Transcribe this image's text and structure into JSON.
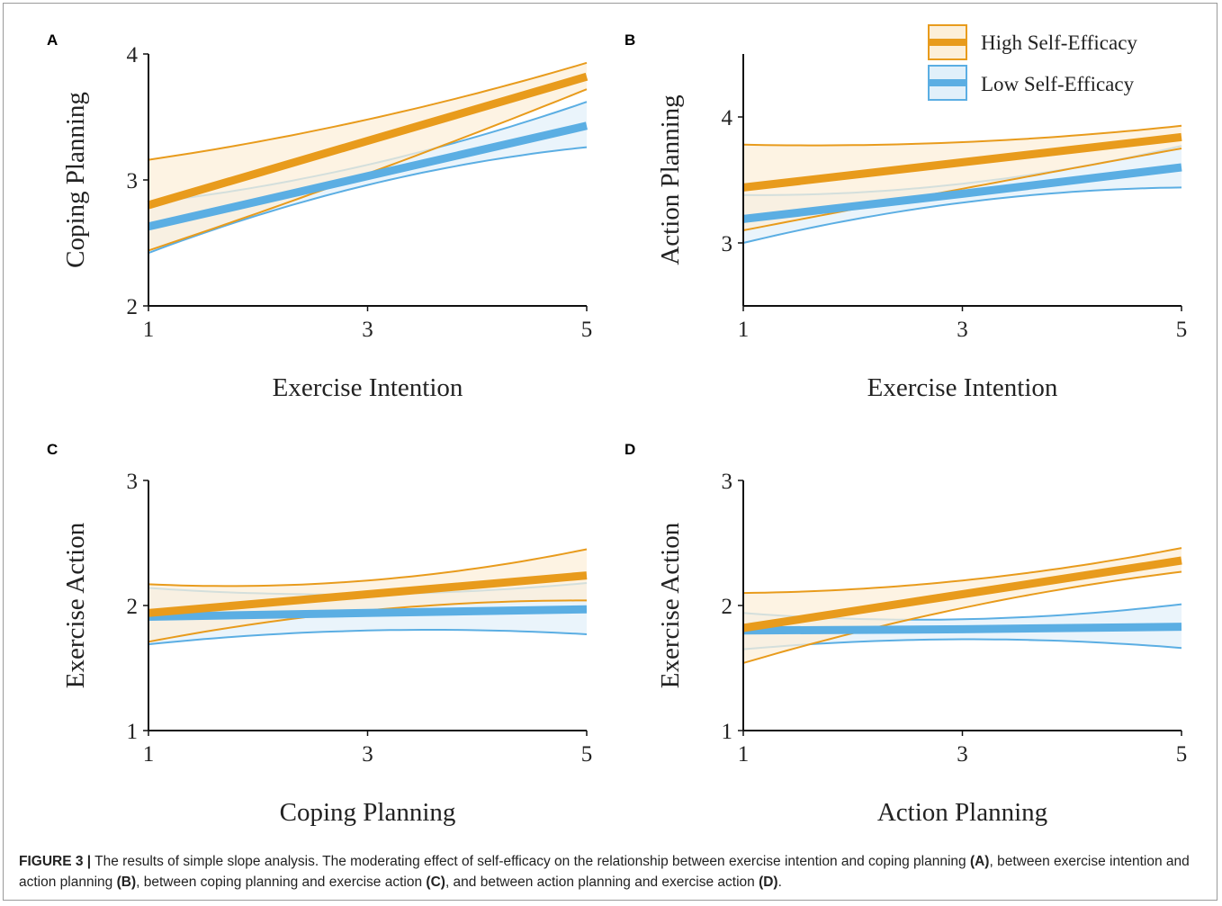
{
  "figure": {
    "caption_label": "FIGURE 3 |",
    "caption_parts": [
      {
        "text": " The results of simple slope analysis. The moderating effect of self-efficacy on the relationship between exercise intention and coping planning ",
        "bold": false
      },
      {
        "text": "(A)",
        "bold": true
      },
      {
        "text": ", between exercise intention and action planning ",
        "bold": false
      },
      {
        "text": "(B)",
        "bold": true
      },
      {
        "text": ", between coping planning and exercise action ",
        "bold": false
      },
      {
        "text": "(C)",
        "bold": true
      },
      {
        "text": ", and between action planning and exercise action ",
        "bold": false
      },
      {
        "text": "(D)",
        "bold": true
      },
      {
        "text": ".",
        "bold": false
      }
    ]
  },
  "legend": {
    "high_label": "High Self-Efficacy",
    "low_label": "Low Self-Efficacy"
  },
  "colors": {
    "high_line": "#E89B1C",
    "high_fill": "#FCEFD9",
    "low_line": "#5BAEE3",
    "low_fill": "#E1F0FA",
    "axis": "#111111"
  },
  "chart_data": [
    {
      "panel": "A",
      "type": "line",
      "xlabel": "Exercise Intention",
      "ylabel": "Coping Planning",
      "xlim": [
        1,
        5
      ],
      "ylim": [
        2,
        4
      ],
      "xticks": [
        1,
        3,
        5
      ],
      "yticks": [
        2,
        3,
        4
      ],
      "series": [
        {
          "name": "High Self-Efficacy",
          "x": [
            1,
            3,
            5
          ],
          "y": [
            2.8,
            3.31,
            3.82
          ],
          "lower": [
            2.44,
            3.05,
            3.72
          ],
          "upper": [
            3.16,
            3.48,
            3.93
          ],
          "color": "#E89B1C"
        },
        {
          "name": "Low Self-Efficacy",
          "x": [
            1,
            3,
            5
          ],
          "y": [
            2.63,
            3.03,
            3.43
          ],
          "lower": [
            2.42,
            2.96,
            3.26
          ],
          "upper": [
            2.82,
            3.12,
            3.62
          ],
          "color": "#5BAEE3"
        }
      ]
    },
    {
      "panel": "B",
      "type": "line",
      "xlabel": "Exercise Intention",
      "ylabel": "Action Planning",
      "xlim": [
        1,
        5
      ],
      "ylim": [
        2.5,
        4.5
      ],
      "xticks": [
        1,
        3,
        5
      ],
      "yticks": [
        3,
        4
      ],
      "series": [
        {
          "name": "High Self-Efficacy",
          "x": [
            1,
            3,
            5
          ],
          "y": [
            3.44,
            3.64,
            3.84
          ],
          "lower": [
            3.1,
            3.43,
            3.75
          ],
          "upper": [
            3.78,
            3.8,
            3.93
          ],
          "color": "#E89B1C"
        },
        {
          "name": "Low Self-Efficacy",
          "x": [
            1,
            3,
            5
          ],
          "y": [
            3.19,
            3.39,
            3.6
          ],
          "lower": [
            3.0,
            3.32,
            3.44
          ],
          "upper": [
            3.38,
            3.47,
            3.77
          ],
          "color": "#5BAEE3"
        }
      ]
    },
    {
      "panel": "C",
      "type": "line",
      "xlabel": "Coping Planning",
      "ylabel": "Exercise Action",
      "xlim": [
        1,
        5
      ],
      "ylim": [
        1,
        3
      ],
      "xticks": [
        1,
        3,
        5
      ],
      "yticks": [
        1,
        2,
        3
      ],
      "series": [
        {
          "name": "High Self-Efficacy",
          "x": [
            1,
            3,
            5
          ],
          "y": [
            1.94,
            2.09,
            2.24
          ],
          "lower": [
            1.71,
            1.96,
            2.04
          ],
          "upper": [
            2.17,
            2.2,
            2.45
          ],
          "color": "#E89B1C"
        },
        {
          "name": "Low Self-Efficacy",
          "x": [
            1,
            3,
            5
          ],
          "y": [
            1.91,
            1.94,
            1.97
          ],
          "lower": [
            1.69,
            1.8,
            1.77
          ],
          "upper": [
            2.14,
            2.09,
            2.18
          ],
          "color": "#5BAEE3"
        }
      ]
    },
    {
      "panel": "D",
      "type": "line",
      "xlabel": "Action Planning",
      "ylabel": "Exercise Action",
      "xlim": [
        1,
        5
      ],
      "ylim": [
        1,
        3
      ],
      "xticks": [
        1,
        3,
        5
      ],
      "yticks": [
        1,
        2,
        3
      ],
      "series": [
        {
          "name": "High Self-Efficacy",
          "x": [
            1,
            3,
            5
          ],
          "y": [
            1.82,
            2.09,
            2.36
          ],
          "lower": [
            1.54,
            1.98,
            2.27
          ],
          "upper": [
            2.1,
            2.2,
            2.46
          ],
          "color": "#E89B1C"
        },
        {
          "name": "Low Self-Efficacy",
          "x": [
            1,
            3,
            5
          ],
          "y": [
            1.8,
            1.81,
            1.83
          ],
          "lower": [
            1.65,
            1.73,
            1.66
          ],
          "upper": [
            1.94,
            1.89,
            2.01
          ],
          "color": "#5BAEE3"
        }
      ]
    }
  ]
}
